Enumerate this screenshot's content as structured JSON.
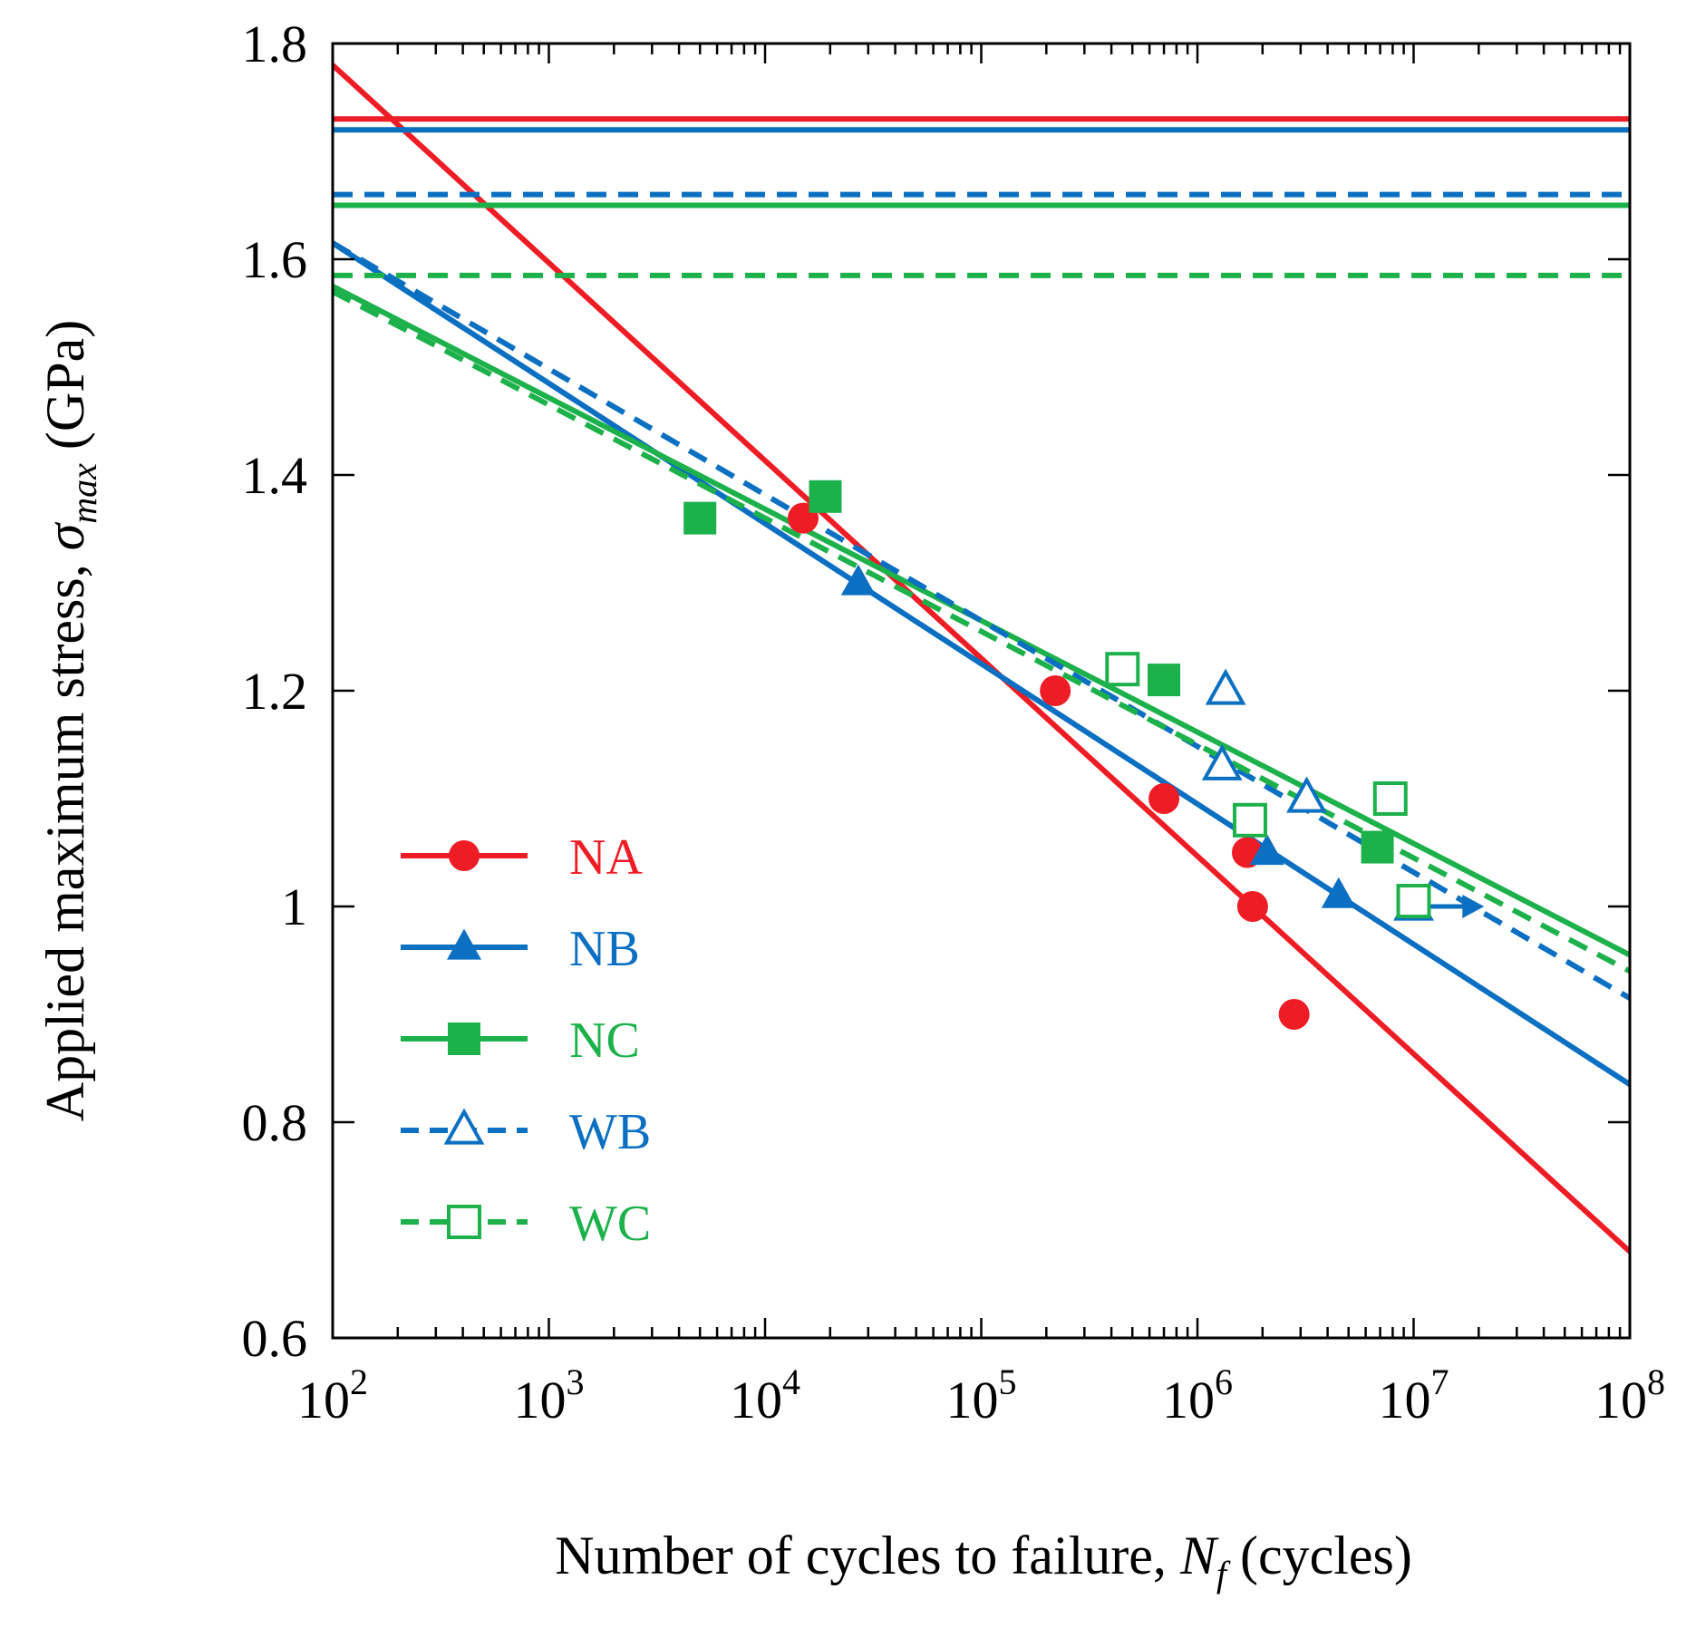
{
  "chart_data": {
    "type": "scatter",
    "title": "",
    "xscale": "log",
    "xlim": [
      100,
      100000000
    ],
    "ylim": [
      0.6,
      1.8
    ],
    "xlabel": {
      "main": "Number of cycles to failure, ",
      "symbol": "N",
      "subscript": "f",
      "unit": " (cycles)"
    },
    "ylabel": {
      "main": "Applied maximum stress, ",
      "symbol": "σ",
      "subscript": "max",
      "unit": " (GPa)"
    },
    "x_ticks": [
      {
        "value": 100,
        "base": "10",
        "exp": "2"
      },
      {
        "value": 1000,
        "base": "10",
        "exp": "3"
      },
      {
        "value": 10000,
        "base": "10",
        "exp": "4"
      },
      {
        "value": 100000,
        "base": "10",
        "exp": "5"
      },
      {
        "value": 1000000,
        "base": "10",
        "exp": "6"
      },
      {
        "value": 10000000,
        "base": "10",
        "exp": "7"
      },
      {
        "value": 100000000,
        "base": "10",
        "exp": "8"
      }
    ],
    "y_ticks": [
      {
        "value": 0.6,
        "label": "0.6"
      },
      {
        "value": 0.8,
        "label": "0.8"
      },
      {
        "value": 1.0,
        "label": "1"
      },
      {
        "value": 1.2,
        "label": "1.2"
      },
      {
        "value": 1.4,
        "label": "1.4"
      },
      {
        "value": 1.6,
        "label": "1.6"
      },
      {
        "value": 1.8,
        "label": "1.8"
      }
    ],
    "series": [
      {
        "name": "NA",
        "color": "#ee1c24",
        "marker": "circle",
        "filled": true,
        "dashed": false,
        "ultimate_strength": 1.73,
        "fit": [
          [
            100,
            1.78
          ],
          [
            100000000,
            0.68
          ]
        ],
        "points": [
          [
            15000,
            1.36
          ],
          [
            220000,
            1.2
          ],
          [
            700000,
            1.1
          ],
          [
            1700000,
            1.05
          ],
          [
            1800000,
            1.0
          ],
          [
            2800000,
            0.9
          ]
        ],
        "runouts": []
      },
      {
        "name": "NB",
        "color": "#0b6fc2",
        "marker": "triangle",
        "filled": true,
        "dashed": false,
        "ultimate_strength": 1.72,
        "fit": [
          [
            100,
            1.615
          ],
          [
            100000000,
            0.835
          ]
        ],
        "points": [
          [
            27000,
            1.3
          ],
          [
            2100000,
            1.05
          ],
          [
            4500000,
            1.01
          ]
        ],
        "runouts": []
      },
      {
        "name": "NC",
        "color": "#1db14b",
        "marker": "square",
        "filled": true,
        "dashed": false,
        "ultimate_strength": 1.65,
        "fit": [
          [
            100,
            1.575
          ],
          [
            100000000,
            0.955
          ]
        ],
        "points": [
          [
            5000,
            1.36
          ],
          [
            19000,
            1.38
          ],
          [
            700000,
            1.21
          ],
          [
            6800000,
            1.055
          ]
        ],
        "runouts": []
      },
      {
        "name": "WB",
        "color": "#0b6fc2",
        "marker": "triangle",
        "filled": false,
        "dashed": true,
        "ultimate_strength": 1.66,
        "fit": [
          [
            100,
            1.615
          ],
          [
            100000000,
            0.915
          ]
        ],
        "points": [
          [
            1350000,
            1.2
          ],
          [
            1300000,
            1.13
          ],
          [
            3200000,
            1.1
          ],
          [
            10000000,
            1.0
          ]
        ],
        "runouts": [
          [
            10000000,
            20000000,
            1.0
          ]
        ]
      },
      {
        "name": "WC",
        "color": "#1db14b",
        "marker": "square",
        "filled": false,
        "dashed": true,
        "ultimate_strength": 1.585,
        "fit": [
          [
            100,
            1.57
          ],
          [
            100000000,
            0.94
          ]
        ],
        "points": [
          [
            450000,
            1.22
          ],
          [
            1750000,
            1.08
          ],
          [
            7800000,
            1.1
          ],
          [
            10000000,
            1.005
          ]
        ],
        "runouts": []
      }
    ],
    "legend": {
      "position": "lower-left",
      "entries": [
        "NA",
        "NB",
        "NC",
        "WB",
        "WC"
      ]
    }
  }
}
